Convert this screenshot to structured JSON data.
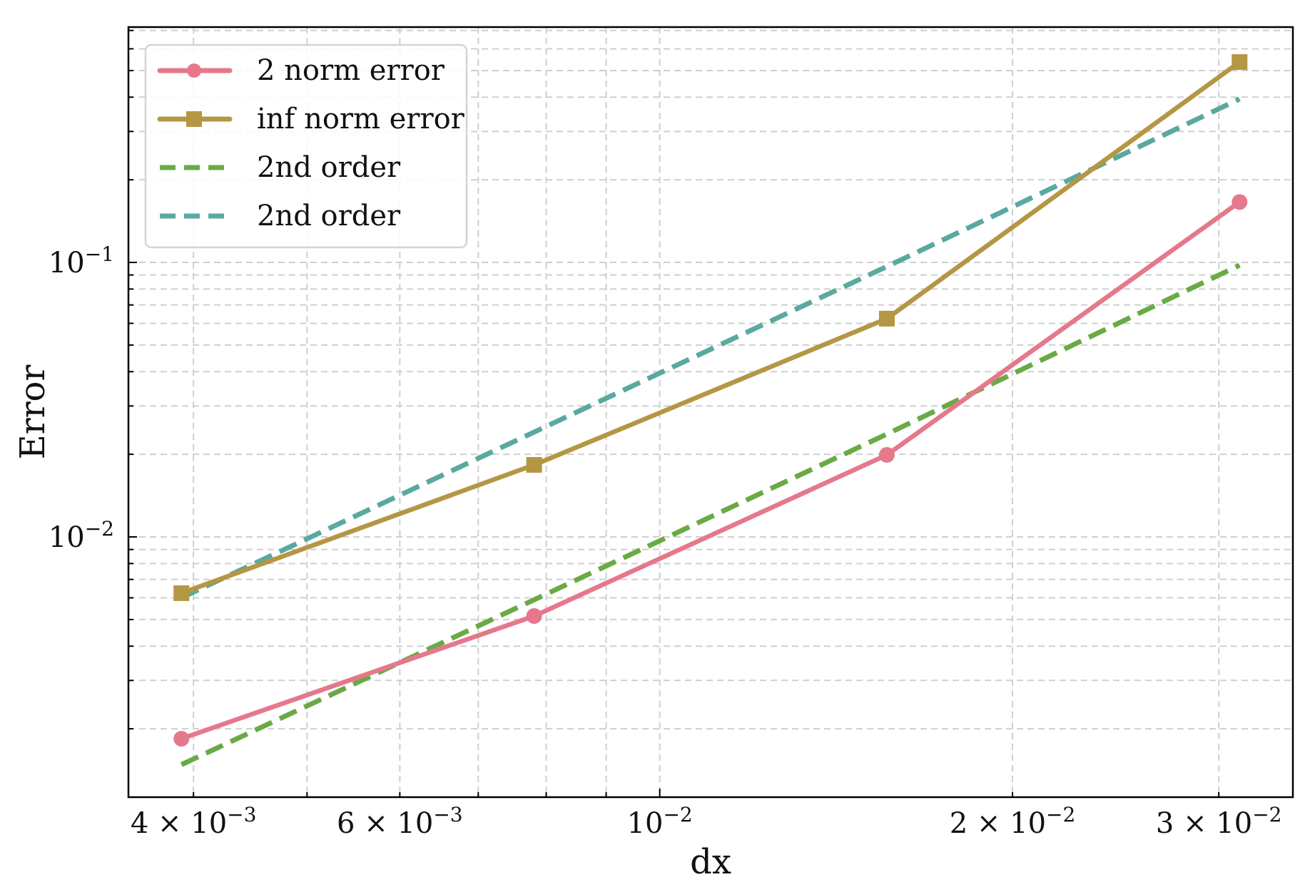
{
  "chart_data": {
    "type": "line",
    "title": "",
    "xlabel": "dx",
    "ylabel": "Error",
    "xscale": "log",
    "yscale": "log",
    "xlim": [
      0.00352,
      0.0347
    ],
    "ylim": [
      0.001127,
      0.72
    ],
    "grid": true,
    "grid_style": "dashed, major and minor",
    "legend_position": "upper left",
    "x_ticks": [
      {
        "value": 0.004,
        "label_base": "4 × 10",
        "label_exp": "−3"
      },
      {
        "value": 0.006,
        "label_base": "6 × 10",
        "label_exp": "−3"
      },
      {
        "value": 0.01,
        "label_base": "10",
        "label_exp": "−2"
      },
      {
        "value": 0.02,
        "label_base": "2 × 10",
        "label_exp": "−2"
      },
      {
        "value": 0.03,
        "label_base": "3 × 10",
        "label_exp": "−2"
      }
    ],
    "y_ticks": [
      {
        "value": 0.1,
        "label_base": "10",
        "label_exp": "−1"
      },
      {
        "value": 0.01,
        "label_base": "10",
        "label_exp": "−2"
      }
    ],
    "x": [
      0.00390625,
      0.0078125,
      0.015625,
      0.03125
    ],
    "series": [
      {
        "name": "2 norm error",
        "values": [
          0.00184,
          0.00515,
          0.0199,
          0.166
        ],
        "color": "#e5788b",
        "style": "solid",
        "marker": "circle"
      },
      {
        "name": "inf norm error",
        "values": [
          0.00624,
          0.0183,
          0.0624,
          0.537
        ],
        "color": "#b59643",
        "style": "solid",
        "marker": "square"
      },
      {
        "name": "2nd order",
        "values": [
          0.00148,
          0.0059,
          0.0237,
          0.0977
        ],
        "color": "#6aaa46",
        "style": "dashed",
        "marker": "none"
      },
      {
        "name": "2nd order",
        "values": [
          0.006,
          0.0241,
          0.0966,
          0.394
        ],
        "color": "#5aa9a0",
        "style": "dashed",
        "marker": "none"
      }
    ]
  }
}
